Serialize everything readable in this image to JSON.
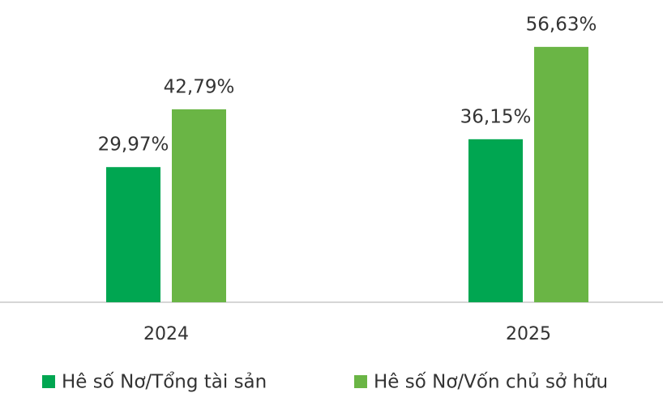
{
  "chart_data": {
    "type": "bar",
    "categories": [
      "2024",
      "2025"
    ],
    "series": [
      {
        "name": "Hê số Nơ/Tổng tài sản",
        "color": "#00a651",
        "values": [
          29.97,
          36.15
        ],
        "value_labels": [
          "29,97%",
          "36,15%"
        ]
      },
      {
        "name": "Hê số Nơ/Vốn chủ sở hữu",
        "color": "#6ab545",
        "values": [
          42.79,
          56.63
        ],
        "value_labels": [
          "42,79%",
          "56,63%"
        ]
      }
    ]
  }
}
